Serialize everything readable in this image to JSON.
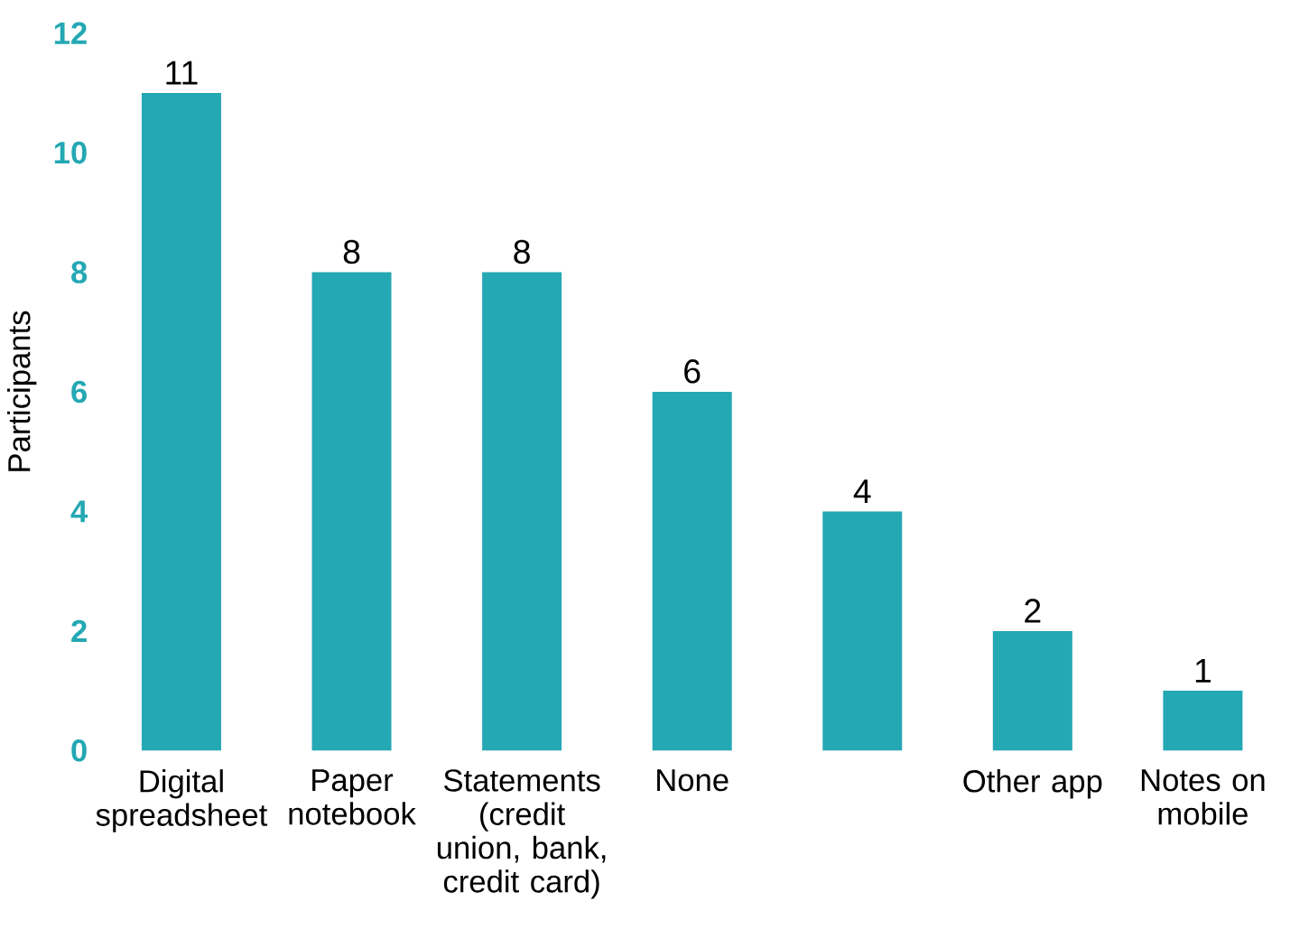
{
  "chart_data": {
    "type": "bar",
    "ylabel": "Participants",
    "categories": [
      "Digital spreadsheet",
      "Paper notebook",
      "Statements (credit union, bank, credit card)",
      "None",
      null,
      "Other app",
      "Notes on mobile"
    ],
    "values": [
      11,
      8,
      8,
      6,
      4,
      2,
      1
    ],
    "color": "#24a8b4",
    "ylim": [
      0,
      12
    ],
    "yticks": [
      0,
      2,
      4,
      6,
      8,
      10,
      12
    ],
    "grid": false,
    "data_labels": true
  }
}
